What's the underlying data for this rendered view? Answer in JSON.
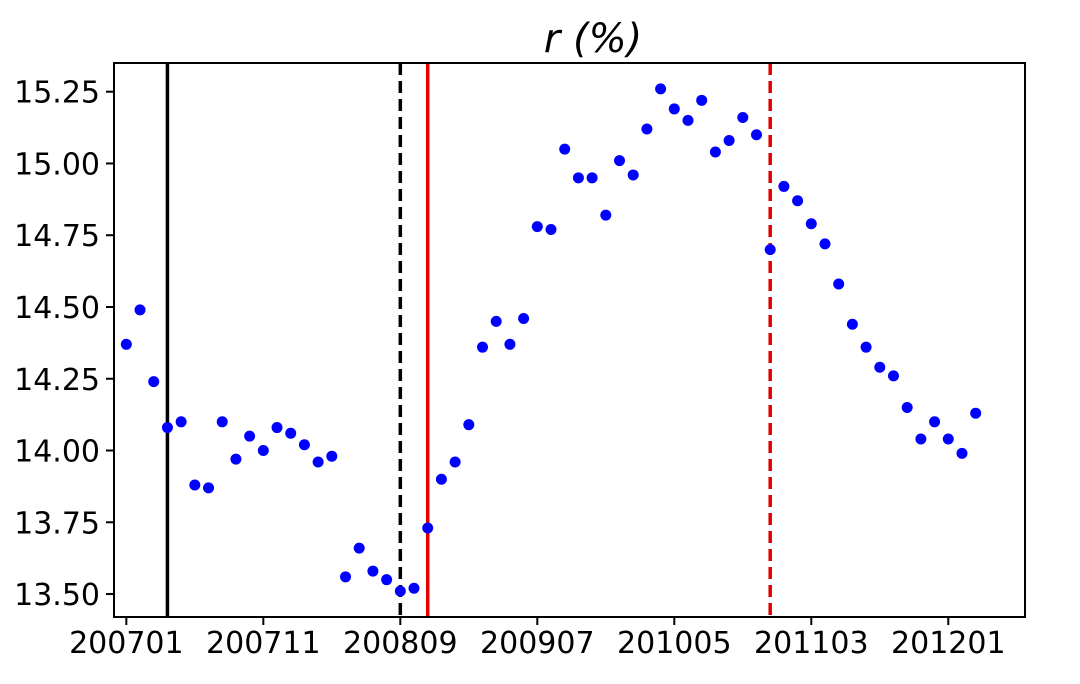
{
  "chart_data": {
    "type": "scatter",
    "title": "r (%)",
    "xlabel": "",
    "ylabel": "",
    "point_color": "#0000ff",
    "x_tick_labels": [
      "200701",
      "200711",
      "200809",
      "200907",
      "201005",
      "201103",
      "201201"
    ],
    "y_tick_labels": [
      "13.50",
      "13.75",
      "14.00",
      "14.25",
      "14.50",
      "14.75",
      "15.00",
      "15.25"
    ],
    "y_ticks": [
      13.5,
      13.75,
      14.0,
      14.25,
      14.5,
      14.75,
      15.0,
      15.25
    ],
    "ylim": [
      13.42,
      15.35
    ],
    "x_index_range": [
      -0.9,
      65.6
    ],
    "series": [
      {
        "values": [
          14.37,
          14.49,
          14.24,
          14.08,
          14.1,
          13.88,
          13.87,
          14.1,
          13.97,
          14.05,
          14.0,
          14.08,
          14.06,
          14.02,
          13.96,
          13.98,
          13.56,
          13.66,
          13.58,
          13.55,
          13.51,
          13.52,
          13.73,
          13.9,
          13.96,
          14.09,
          14.36,
          14.45,
          14.37,
          14.46,
          14.78,
          14.77,
          15.05,
          14.95,
          14.95,
          14.82,
          15.01,
          14.96,
          15.12,
          15.26,
          15.19,
          15.15,
          15.22,
          15.04,
          15.08,
          15.16,
          15.1,
          14.7,
          14.92,
          14.87,
          14.79,
          14.72,
          14.58,
          14.44,
          14.36,
          14.29,
          14.26,
          14.15,
          14.04,
          14.1,
          14.04,
          13.99,
          14.13
        ]
      }
    ],
    "vertical_lines": [
      {
        "x_index": 3,
        "color": "#000000",
        "style": "solid"
      },
      {
        "x_index": 20,
        "color": "#000000",
        "style": "dashed"
      },
      {
        "x_index": 22,
        "color": "#e00000",
        "style": "solid"
      },
      {
        "x_index": 47,
        "color": "#e00000",
        "style": "dashed"
      }
    ],
    "x_tick_index": [
      0,
      10,
      20,
      30,
      40,
      50,
      60
    ],
    "grid": false,
    "legend": "none"
  }
}
